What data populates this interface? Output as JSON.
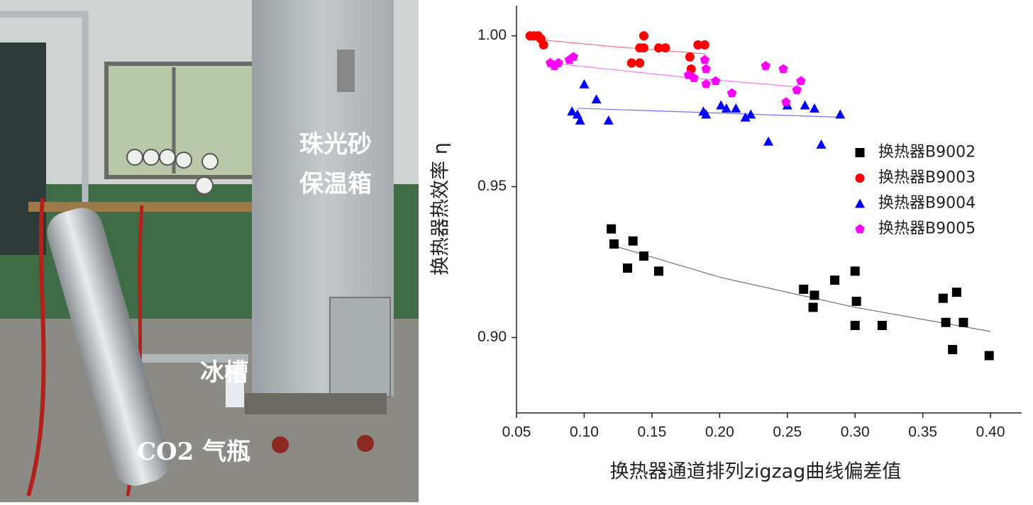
{
  "photo": {
    "labels": [
      "珠光砂",
      "保温箱",
      "冰槽",
      "CO2 气瓶"
    ]
  },
  "chart_data": {
    "type": "scatter",
    "xlabel": "换热器通道排列zigzag曲线偏差值",
    "ylabel": "换热器热效率 η",
    "xlim": [
      0.05,
      0.423
    ],
    "ylim": [
      0.875,
      1.01
    ],
    "xticks": [
      0.05,
      {
        "value": 0.1,
        "label": "0.10"
      },
      0.15,
      {
        "value": 0.2,
        "label": "0.20"
      },
      0.25,
      {
        "value": 0.3,
        "label": "0.30"
      },
      0.35,
      {
        "value": 0.4,
        "label": "0.40"
      }
    ],
    "yticks": [
      {
        "value": 0.9,
        "label": "0.90"
      },
      0.95,
      {
        "value": 1,
        "label": "1.00"
      }
    ],
    "legend": "center right",
    "series": [
      {
        "name": "换热器B9002",
        "color": "#000000",
        "marker": "square",
        "x": [
          0.12,
          0.122,
          0.136,
          0.132,
          0.144,
          0.155,
          0.262,
          0.27,
          0.269,
          0.285,
          0.3,
          0.301,
          0.3,
          0.32,
          0.365,
          0.375,
          0.367,
          0.38,
          0.372,
          0.399
        ],
        "values": [
          0.936,
          0.931,
          0.932,
          0.923,
          0.927,
          0.922,
          0.916,
          0.914,
          0.91,
          0.919,
          0.922,
          0.912,
          0.904,
          0.904,
          0.913,
          0.915,
          0.905,
          0.905,
          0.896,
          0.894
        ],
        "fit_x": [
          0.125,
          0.2,
          0.3,
          0.4
        ],
        "fit_y": [
          0.93,
          0.92,
          0.91,
          0.902
        ]
      },
      {
        "name": "换热器B9003",
        "color": "#ff0000",
        "marker": "circle",
        "x": [
          0.06,
          0.063,
          0.066,
          0.068,
          0.07,
          0.135,
          0.141,
          0.141,
          0.144,
          0.144,
          0.155,
          0.16,
          0.178,
          0.179,
          0.184,
          0.189
        ],
        "values": [
          1.0,
          1.0,
          1.0,
          0.999,
          0.997,
          0.991,
          0.991,
          0.996,
          1.0,
          0.996,
          0.996,
          0.996,
          0.993,
          0.989,
          0.997,
          0.997
        ],
        "fit_x": [
          0.06,
          0.12,
          0.19
        ],
        "fit_y": [
          0.999,
          0.9965,
          0.994
        ]
      },
      {
        "name": "换热器B9004",
        "color": "#0000ff",
        "marker": "triangle",
        "x": [
          0.091,
          0.095,
          0.097,
          0.1,
          0.109,
          0.118,
          0.188,
          0.19,
          0.201,
          0.205,
          0.212,
          0.219,
          0.223,
          0.236,
          0.25,
          0.263,
          0.27,
          0.275,
          0.289
        ],
        "values": [
          0.975,
          0.974,
          0.972,
          0.984,
          0.979,
          0.972,
          0.975,
          0.974,
          0.977,
          0.976,
          0.976,
          0.973,
          0.974,
          0.965,
          0.977,
          0.977,
          0.976,
          0.964,
          0.974
        ],
        "fit_x": [
          0.095,
          0.29
        ],
        "fit_y": [
          0.976,
          0.973
        ]
      },
      {
        "name": "换热器B9005",
        "color": "#ff00ff",
        "marker": "pentagon",
        "x": [
          0.075,
          0.078,
          0.081,
          0.089,
          0.092,
          0.177,
          0.181,
          0.189,
          0.19,
          0.19,
          0.197,
          0.209,
          0.234,
          0.247,
          0.249,
          0.257,
          0.26
        ],
        "values": [
          0.991,
          0.99,
          0.991,
          0.992,
          0.993,
          0.987,
          0.986,
          0.992,
          0.989,
          0.984,
          0.985,
          0.981,
          0.99,
          0.989,
          0.978,
          0.982,
          0.985
        ],
        "fit_x": [
          0.075,
          0.18,
          0.26
        ],
        "fit_y": [
          0.991,
          0.986,
          0.983
        ]
      }
    ]
  }
}
